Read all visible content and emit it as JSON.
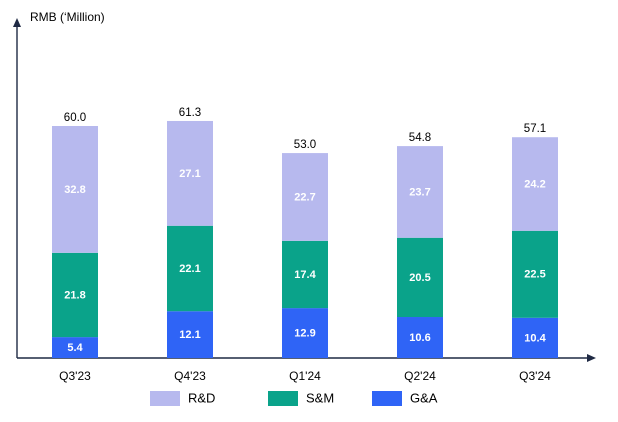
{
  "chart_data": {
    "type": "bar",
    "stacked": true,
    "title": "",
    "ylabel": "RMB (‘Million)",
    "xlabel": "",
    "ylim": [
      0,
      70
    ],
    "grid": false,
    "legend_position": "bottom",
    "categories": [
      "Q3'23",
      "Q4'23",
      "Q1'24",
      "Q2'24",
      "Q3'24"
    ],
    "series": [
      {
        "name": "G&A",
        "color": "#2f64f6",
        "label_color": "#ffffff",
        "values": [
          5.4,
          12.1,
          12.9,
          10.6,
          10.4
        ],
        "labels": [
          "5.4",
          "12.1",
          "12.9",
          "10.6",
          "10.4"
        ]
      },
      {
        "name": "S&M",
        "color": "#0aa38a",
        "label_color": "#ffffff",
        "values": [
          21.8,
          22.1,
          17.4,
          20.5,
          22.5
        ],
        "labels": [
          "21.8",
          "22.1",
          "17.4",
          "20.5",
          "22.5"
        ]
      },
      {
        "name": "R&D",
        "color": "#b7b9ee",
        "label_color": "#ffffff",
        "values": [
          32.8,
          27.1,
          22.7,
          23.7,
          24.2
        ],
        "labels": [
          "32.8",
          "27.1",
          "22.7",
          "23.7",
          "24.2"
        ]
      }
    ],
    "totals": [
      60.0,
      61.3,
      53.0,
      54.8,
      57.1
    ],
    "total_labels": [
      "60.0",
      "61.3",
      "53.0",
      "54.8",
      "57.1"
    ],
    "legend": [
      "R&D",
      "S&M",
      "G&A"
    ]
  },
  "colors": {
    "axis": "#1f2a44"
  }
}
